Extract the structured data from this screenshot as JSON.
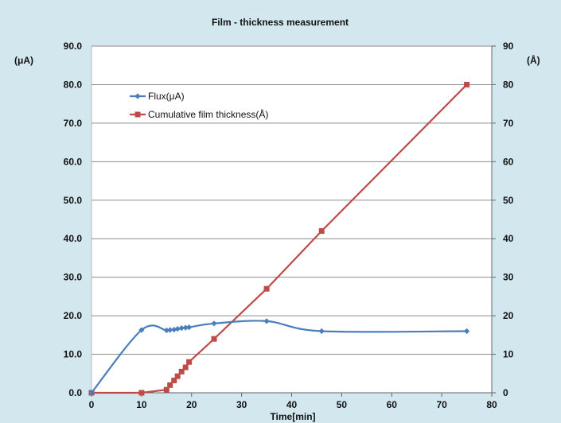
{
  "chart_data": {
    "type": "line",
    "title": "Film - thickness measurement",
    "xlabel": "Time[min]",
    "ylabel_left": "(μA)",
    "ylabel_right": "(Å)",
    "xlim": [
      0,
      80
    ],
    "ylim_left": [
      0,
      90
    ],
    "ylim_right": [
      0,
      90
    ],
    "x_ticks": [
      0,
      10,
      20,
      30,
      40,
      50,
      60,
      70,
      80
    ],
    "y_left_ticks": [
      "0.0",
      "10.0",
      "20.0",
      "30.0",
      "40.0",
      "50.0",
      "60.0",
      "70.0",
      "80.0",
      "90.0"
    ],
    "y_right_ticks": [
      "0",
      "10",
      "20",
      "30",
      "40",
      "50",
      "60",
      "70",
      "80",
      "90"
    ],
    "grid": "horizontal",
    "legend_position": "top-left",
    "series": [
      {
        "name": "Flux(μA)",
        "axis": "left",
        "color": "#4a7ebb",
        "marker": "diamond",
        "smooth": true,
        "x": [
          0,
          10,
          15,
          15.7,
          16.5,
          17.2,
          18,
          18.8,
          19.5,
          24.5,
          35,
          46,
          75
        ],
        "y": [
          0,
          16.3,
          16.2,
          16.3,
          16.4,
          16.6,
          16.8,
          16.9,
          17.0,
          18.0,
          18.6,
          16.0,
          16.0
        ]
      },
      {
        "name": "Cumulative film thickness(Å)",
        "axis": "right",
        "color": "#be4b48",
        "marker": "square",
        "smooth": false,
        "x": [
          0,
          10,
          15,
          15.7,
          16.5,
          17.2,
          18,
          18.8,
          19.5,
          24.5,
          35,
          46,
          75
        ],
        "y": [
          0,
          0,
          0.8,
          2.0,
          3.2,
          4.3,
          5.5,
          6.6,
          8.0,
          14.0,
          27.0,
          42.0,
          80.0
        ]
      }
    ]
  },
  "colors": {
    "background": "#d3e7ef",
    "plot_area": "#ffffff",
    "gridline": "#8c8c8c"
  }
}
